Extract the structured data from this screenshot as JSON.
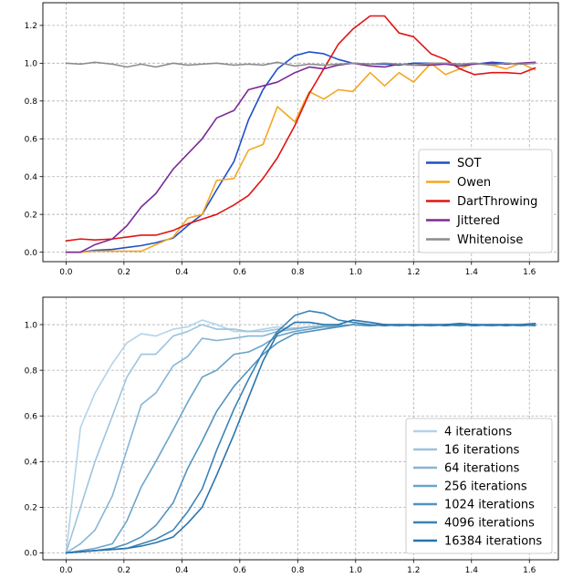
{
  "chart_data": [
    {
      "type": "line",
      "xlim": [
        -0.08,
        1.7
      ],
      "ylim": [
        -0.05,
        1.32
      ],
      "xticks": [
        "0.0",
        "0.2",
        "0.4",
        "0.6",
        "0.8",
        "1.0",
        "1.2",
        "1.4",
        "1.6"
      ],
      "yticks": [
        "0.0",
        "0.2",
        "0.4",
        "0.6",
        "0.8",
        "1.0",
        "1.2"
      ],
      "grid": true,
      "legend_position": "lower-right",
      "series": [
        {
          "name": "SOT",
          "color": "#1f4fc8",
          "x": [
            0.0,
            0.05,
            0.1,
            0.16,
            0.21,
            0.26,
            0.31,
            0.37,
            0.42,
            0.47,
            0.52,
            0.58,
            0.63,
            0.68,
            0.73,
            0.79,
            0.84,
            0.89,
            0.94,
            0.99,
            1.05,
            1.1,
            1.15,
            1.2,
            1.26,
            1.31,
            1.36,
            1.41,
            1.47,
            1.52,
            1.57,
            1.62
          ],
          "y": [
            0.0,
            0.0,
            0.01,
            0.015,
            0.025,
            0.035,
            0.05,
            0.075,
            0.14,
            0.2,
            0.33,
            0.48,
            0.7,
            0.86,
            0.97,
            1.04,
            1.06,
            1.05,
            1.02,
            1.0,
            0.995,
            0.995,
            0.99,
            1.0,
            1.0,
            1.0,
            0.995,
            0.995,
            1.005,
            1.0,
            0.995,
            1.0
          ]
        },
        {
          "name": "Owen",
          "color": "#f5a623",
          "x": [
            0.0,
            0.05,
            0.1,
            0.16,
            0.21,
            0.26,
            0.31,
            0.37,
            0.42,
            0.47,
            0.52,
            0.58,
            0.63,
            0.68,
            0.73,
            0.79,
            0.84,
            0.89,
            0.94,
            0.99,
            1.05,
            1.1,
            1.15,
            1.2,
            1.26,
            1.31,
            1.36,
            1.41,
            1.47,
            1.52,
            1.57,
            1.62
          ],
          "y": [
            0.0,
            0.0,
            0.005,
            0.005,
            0.005,
            0.005,
            0.04,
            0.08,
            0.18,
            0.2,
            0.38,
            0.39,
            0.54,
            0.57,
            0.77,
            0.69,
            0.85,
            0.81,
            0.86,
            0.85,
            0.95,
            0.88,
            0.95,
            0.9,
            1.0,
            0.94,
            0.97,
            1.0,
            0.99,
            0.97,
            1.0,
            0.965
          ]
        },
        {
          "name": "DartThrowing",
          "color": "#e01414",
          "x": [
            0.0,
            0.05,
            0.1,
            0.16,
            0.21,
            0.26,
            0.31,
            0.37,
            0.42,
            0.47,
            0.52,
            0.58,
            0.63,
            0.68,
            0.73,
            0.79,
            0.84,
            0.89,
            0.94,
            0.99,
            1.05,
            1.1,
            1.15,
            1.2,
            1.26,
            1.31,
            1.36,
            1.41,
            1.47,
            1.52,
            1.57,
            1.62
          ],
          "y": [
            0.06,
            0.07,
            0.065,
            0.07,
            0.08,
            0.09,
            0.09,
            0.115,
            0.15,
            0.175,
            0.2,
            0.25,
            0.3,
            0.39,
            0.5,
            0.67,
            0.84,
            0.97,
            1.1,
            1.18,
            1.25,
            1.25,
            1.16,
            1.14,
            1.05,
            1.02,
            0.97,
            0.94,
            0.95,
            0.95,
            0.945,
            0.975
          ]
        },
        {
          "name": "Jittered",
          "color": "#7b2a96",
          "x": [
            0.0,
            0.05,
            0.1,
            0.16,
            0.21,
            0.26,
            0.31,
            0.37,
            0.42,
            0.47,
            0.52,
            0.58,
            0.63,
            0.68,
            0.73,
            0.79,
            0.84,
            0.89,
            0.94,
            0.99,
            1.05,
            1.1,
            1.15,
            1.2,
            1.26,
            1.31,
            1.36,
            1.41,
            1.47,
            1.52,
            1.57,
            1.62
          ],
          "y": [
            0.0,
            0.0,
            0.04,
            0.07,
            0.14,
            0.24,
            0.31,
            0.44,
            0.52,
            0.6,
            0.71,
            0.75,
            0.86,
            0.88,
            0.9,
            0.95,
            0.98,
            0.97,
            0.99,
            1.0,
            0.985,
            0.98,
            0.995,
            0.99,
            0.99,
            0.995,
            0.985,
            0.995,
            1.0,
            0.995,
            1.0,
            1.005
          ]
        },
        {
          "name": "Whitenoise",
          "color": "#8c8c8c",
          "x": [
            0.0,
            0.05,
            0.1,
            0.16,
            0.21,
            0.26,
            0.31,
            0.37,
            0.42,
            0.47,
            0.52,
            0.58,
            0.63,
            0.68,
            0.73,
            0.79,
            0.84,
            0.89,
            0.94,
            0.99,
            1.05,
            1.1,
            1.15,
            1.2,
            1.26,
            1.31,
            1.36,
            1.41,
            1.47,
            1.52,
            1.57,
            1.62
          ],
          "y": [
            1.0,
            0.995,
            1.005,
            0.995,
            0.98,
            0.995,
            0.98,
            1.0,
            0.99,
            0.995,
            1.0,
            0.99,
            0.995,
            0.99,
            1.005,
            0.985,
            0.995,
            0.99,
            0.995,
            1.0,
            0.995,
            1.0,
            0.995,
            0.99,
            1.0,
            1.0,
            0.995,
            1.0,
            0.99,
            1.0,
            0.995,
            1.0
          ]
        }
      ]
    },
    {
      "type": "line",
      "xlim": [
        -0.08,
        1.7
      ],
      "ylim": [
        -0.03,
        1.12
      ],
      "xticks": [
        "0.0",
        "0.2",
        "0.4",
        "0.6",
        "0.8",
        "1.0",
        "1.2",
        "1.4",
        "1.6"
      ],
      "yticks": [
        "0.0",
        "0.2",
        "0.4",
        "0.6",
        "0.8",
        "1.0"
      ],
      "grid": true,
      "legend_position": "lower-right",
      "series": [
        {
          "name": "4 iterations",
          "color": "#b3d3e8",
          "x": [
            0.0,
            0.05,
            0.1,
            0.16,
            0.21,
            0.26,
            0.31,
            0.37,
            0.42,
            0.47,
            0.52,
            0.58,
            0.63,
            0.68,
            0.73,
            0.79,
            0.84,
            0.89,
            0.94,
            0.99,
            1.05,
            1.1,
            1.15,
            1.2,
            1.26,
            1.31,
            1.36,
            1.41,
            1.47,
            1.52,
            1.57,
            1.62
          ],
          "y": [
            0.0,
            0.55,
            0.7,
            0.83,
            0.92,
            0.96,
            0.95,
            0.98,
            0.99,
            1.02,
            1.0,
            0.97,
            0.97,
            0.98,
            0.99,
            0.98,
            0.99,
            0.995,
            0.99,
            1.0,
            0.995,
            1.0,
            0.995,
            1.0,
            0.995,
            1.0,
            0.995,
            1.0,
            0.995,
            1.0,
            0.995,
            1.0
          ]
        },
        {
          "name": "16 iterations",
          "color": "#9cc4de",
          "x": [
            0.0,
            0.05,
            0.1,
            0.16,
            0.21,
            0.26,
            0.31,
            0.37,
            0.42,
            0.47,
            0.52,
            0.58,
            0.63,
            0.68,
            0.73,
            0.79,
            0.84,
            0.89,
            0.94,
            0.99,
            1.05,
            1.1,
            1.15,
            1.2,
            1.26,
            1.31,
            1.36,
            1.41,
            1.47,
            1.52,
            1.57,
            1.62
          ],
          "y": [
            0.0,
            0.2,
            0.4,
            0.6,
            0.77,
            0.87,
            0.87,
            0.95,
            0.97,
            1.0,
            0.98,
            0.98,
            0.97,
            0.97,
            0.98,
            0.985,
            0.99,
            0.995,
            0.99,
            1.0,
            0.995,
            1.0,
            0.995,
            1.0,
            0.995,
            1.0,
            0.995,
            1.0,
            0.995,
            1.0,
            0.995,
            1.0
          ]
        },
        {
          "name": "64 iterations",
          "color": "#86b5d4",
          "x": [
            0.0,
            0.05,
            0.1,
            0.16,
            0.21,
            0.26,
            0.31,
            0.37,
            0.42,
            0.47,
            0.52,
            0.58,
            0.63,
            0.68,
            0.73,
            0.79,
            0.84,
            0.89,
            0.94,
            0.99,
            1.05,
            1.1,
            1.15,
            1.2,
            1.26,
            1.31,
            1.36,
            1.41,
            1.47,
            1.52,
            1.57,
            1.62
          ],
          "y": [
            0.0,
            0.04,
            0.1,
            0.25,
            0.45,
            0.65,
            0.7,
            0.82,
            0.86,
            0.94,
            0.93,
            0.94,
            0.95,
            0.95,
            0.97,
            0.98,
            0.99,
            0.99,
            0.99,
            1.0,
            0.995,
            1.0,
            0.995,
            1.0,
            0.995,
            1.0,
            0.995,
            1.0,
            0.995,
            1.0,
            0.995,
            1.0
          ]
        },
        {
          "name": "256 iterations",
          "color": "#6ba4c9",
          "x": [
            0.0,
            0.05,
            0.1,
            0.16,
            0.21,
            0.26,
            0.31,
            0.37,
            0.42,
            0.47,
            0.52,
            0.58,
            0.63,
            0.68,
            0.73,
            0.79,
            0.84,
            0.89,
            0.94,
            0.99,
            1.05,
            1.1,
            1.15,
            1.2,
            1.26,
            1.31,
            1.36,
            1.41,
            1.47,
            1.52,
            1.57,
            1.62
          ],
          "y": [
            0.0,
            0.01,
            0.02,
            0.04,
            0.14,
            0.29,
            0.4,
            0.54,
            0.66,
            0.77,
            0.8,
            0.87,
            0.88,
            0.91,
            0.95,
            0.97,
            0.98,
            0.99,
            0.995,
            1.0,
            0.995,
            1.0,
            0.995,
            1.0,
            0.995,
            1.0,
            0.995,
            1.0,
            0.995,
            1.0,
            0.995,
            1.0
          ]
        },
        {
          "name": "1024 iterations",
          "color": "#5193c0",
          "x": [
            0.0,
            0.05,
            0.1,
            0.16,
            0.21,
            0.26,
            0.31,
            0.37,
            0.42,
            0.47,
            0.52,
            0.58,
            0.63,
            0.68,
            0.73,
            0.79,
            0.84,
            0.89,
            0.94,
            0.99,
            1.05,
            1.1,
            1.15,
            1.2,
            1.26,
            1.31,
            1.36,
            1.41,
            1.47,
            1.52,
            1.57,
            1.62
          ],
          "y": [
            0.0,
            0.005,
            0.01,
            0.02,
            0.04,
            0.07,
            0.12,
            0.22,
            0.37,
            0.49,
            0.62,
            0.73,
            0.8,
            0.87,
            0.92,
            0.96,
            0.97,
            0.98,
            0.99,
            1.0,
            0.995,
            1.0,
            0.995,
            1.0,
            0.995,
            1.0,
            0.995,
            1.0,
            0.995,
            1.0,
            0.995,
            1.0
          ]
        },
        {
          "name": "4096 iterations",
          "color": "#3a83b6",
          "x": [
            0.0,
            0.05,
            0.1,
            0.16,
            0.21,
            0.26,
            0.31,
            0.37,
            0.42,
            0.47,
            0.52,
            0.58,
            0.63,
            0.68,
            0.73,
            0.79,
            0.84,
            0.89,
            0.94,
            0.99,
            1.05,
            1.1,
            1.15,
            1.2,
            1.26,
            1.31,
            1.36,
            1.41,
            1.47,
            1.52,
            1.57,
            1.62
          ],
          "y": [
            0.0,
            0.005,
            0.01,
            0.015,
            0.02,
            0.04,
            0.06,
            0.1,
            0.18,
            0.28,
            0.45,
            0.63,
            0.76,
            0.88,
            0.97,
            1.04,
            1.06,
            1.05,
            1.02,
            1.01,
            1.0,
            0.995,
            1.0,
            0.995,
            1.0,
            0.995,
            1.0,
            0.995,
            1.0,
            0.995,
            1.0,
            0.995
          ]
        },
        {
          "name": "16384 iterations",
          "color": "#2a74ac",
          "x": [
            0.0,
            0.05,
            0.1,
            0.16,
            0.21,
            0.26,
            0.31,
            0.37,
            0.42,
            0.47,
            0.52,
            0.58,
            0.63,
            0.68,
            0.73,
            0.79,
            0.84,
            0.89,
            0.94,
            0.99,
            1.05,
            1.1,
            1.15,
            1.2,
            1.26,
            1.31,
            1.36,
            1.41,
            1.47,
            1.52,
            1.57,
            1.62
          ],
          "y": [
            0.0,
            0.005,
            0.01,
            0.015,
            0.02,
            0.03,
            0.045,
            0.07,
            0.13,
            0.2,
            0.34,
            0.52,
            0.68,
            0.84,
            0.96,
            1.01,
            1.01,
            1.0,
            1.0,
            1.02,
            1.01,
            1.0,
            1.0,
            1.0,
            1.0,
            1.0,
            1.005,
            1.0,
            1.0,
            1.0,
            1.0,
            1.005
          ]
        }
      ]
    }
  ]
}
